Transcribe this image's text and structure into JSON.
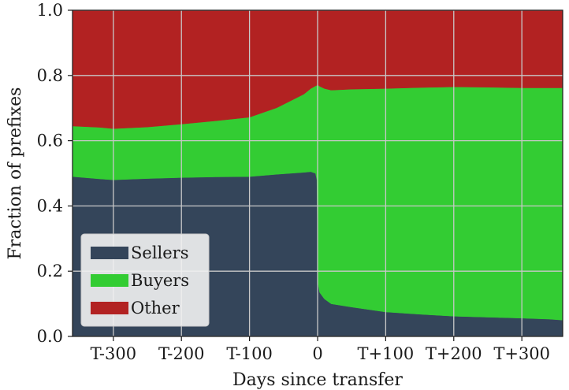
{
  "chart_data": {
    "type": "area",
    "stacked": true,
    "title": "",
    "xlabel": "Days since transfer",
    "ylabel": "Fraction of prefixes",
    "xlim": [
      -360,
      360
    ],
    "ylim": [
      0,
      1.0
    ],
    "grid": true,
    "legend_position": "bottom-left",
    "xticks": [
      {
        "value": -300,
        "label": "T-300"
      },
      {
        "value": -200,
        "label": "T-200"
      },
      {
        "value": -100,
        "label": "T-100"
      },
      {
        "value": 0,
        "label": "0"
      },
      {
        "value": 100,
        "label": "T+100"
      },
      {
        "value": 200,
        "label": "T+200"
      },
      {
        "value": 300,
        "label": "T+300"
      }
    ],
    "yticks": [
      {
        "value": 0.0,
        "label": "0.0"
      },
      {
        "value": 0.2,
        "label": "0.2"
      },
      {
        "value": 0.4,
        "label": "0.4"
      },
      {
        "value": 0.6,
        "label": "0.6"
      },
      {
        "value": 0.8,
        "label": "0.8"
      },
      {
        "value": 1.0,
        "label": "1.0"
      }
    ],
    "x": [
      -360,
      -320,
      -300,
      -250,
      -200,
      -150,
      -100,
      -60,
      -20,
      -10,
      -3,
      -1,
      0,
      1,
      3,
      10,
      20,
      50,
      100,
      150,
      200,
      250,
      300,
      340,
      360
    ],
    "series": [
      {
        "name": "Sellers",
        "color": "#34455a",
        "values": [
          0.49,
          0.483,
          0.48,
          0.484,
          0.487,
          0.489,
          0.49,
          0.497,
          0.503,
          0.505,
          0.5,
          0.48,
          0.3,
          0.16,
          0.135,
          0.115,
          0.1,
          0.09,
          0.075,
          0.068,
          0.062,
          0.059,
          0.056,
          0.053,
          0.05
        ]
      },
      {
        "name": "Buyers",
        "color": "#33cc33",
        "values": [
          0.155,
          0.158,
          0.157,
          0.158,
          0.164,
          0.172,
          0.182,
          0.204,
          0.24,
          0.255,
          0.268,
          0.29,
          0.47,
          0.61,
          0.632,
          0.645,
          0.655,
          0.668,
          0.685,
          0.695,
          0.703,
          0.705,
          0.706,
          0.709,
          0.712
        ]
      },
      {
        "name": "Other",
        "color": "#b22222",
        "values": [
          0.355,
          0.359,
          0.363,
          0.358,
          0.349,
          0.339,
          0.328,
          0.299,
          0.257,
          0.24,
          0.232,
          0.23,
          0.23,
          0.23,
          0.233,
          0.24,
          0.245,
          0.242,
          0.24,
          0.237,
          0.235,
          0.236,
          0.238,
          0.238,
          0.238
        ]
      }
    ]
  }
}
